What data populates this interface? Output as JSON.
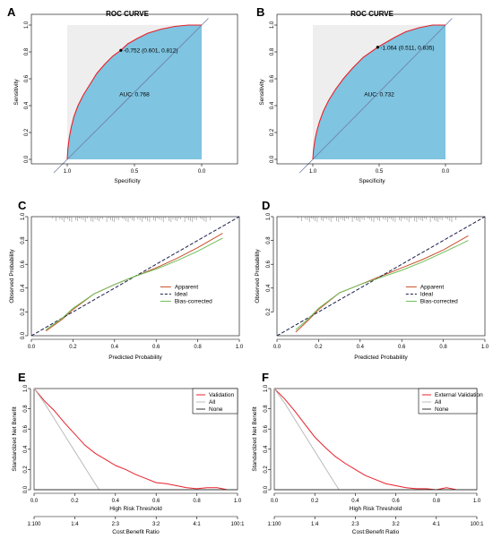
{
  "chart_data": [
    {
      "panel": "A",
      "type": "area",
      "title": "ROC CURVE",
      "xlabel": "Specificity",
      "ylabel": "Sensitivity",
      "xlim": [
        1.0,
        0.0
      ],
      "ylim": [
        0.0,
        1.0
      ],
      "xticks": [
        "1.0",
        "0.5",
        "0.0"
      ],
      "yticks": [
        "0.0",
        "0.2",
        "0.4",
        "0.6",
        "0.8",
        "1.0"
      ],
      "curve": {
        "specificity": [
          1.0,
          0.995,
          0.985,
          0.97,
          0.95,
          0.92,
          0.88,
          0.83,
          0.78,
          0.72,
          0.66,
          0.601,
          0.55,
          0.48,
          0.4,
          0.3,
          0.2,
          0.1,
          0.0
        ],
        "sensitivity": [
          0.0,
          0.08,
          0.16,
          0.24,
          0.32,
          0.4,
          0.48,
          0.56,
          0.64,
          0.71,
          0.77,
          0.812,
          0.86,
          0.9,
          0.94,
          0.97,
          0.99,
          1.0,
          1.0
        ]
      },
      "threshold_label": "-0.752 (0.601, 0.812)",
      "threshold_point": [
        0.601,
        0.812
      ],
      "auc_label": "AUC: 0.768",
      "colors": {
        "curve": "#e8202a",
        "fill": "#7fc4e0",
        "upper": "#eeeeee",
        "diag": "#6f7ca8"
      }
    },
    {
      "panel": "B",
      "type": "area",
      "title": "ROC CURVE",
      "xlabel": "Specificity",
      "ylabel": "Sensitivity",
      "xlim": [
        1.0,
        0.0
      ],
      "ylim": [
        0.0,
        1.0
      ],
      "xticks": [
        "1.0",
        "0.5",
        "0.0"
      ],
      "yticks": [
        "0.0",
        "0.2",
        "0.4",
        "0.6",
        "0.8",
        "1.0"
      ],
      "curve": {
        "specificity": [
          1.0,
          0.995,
          0.985,
          0.97,
          0.95,
          0.92,
          0.88,
          0.83,
          0.77,
          0.7,
          0.62,
          0.511,
          0.45,
          0.38,
          0.3,
          0.2,
          0.1,
          0.0
        ],
        "sensitivity": [
          0.0,
          0.07,
          0.14,
          0.21,
          0.28,
          0.36,
          0.44,
          0.52,
          0.6,
          0.68,
          0.76,
          0.835,
          0.87,
          0.91,
          0.95,
          0.98,
          1.0,
          1.0
        ]
      },
      "threshold_label": "-1.064 (0.511, 0.835)",
      "threshold_point": [
        0.511,
        0.835
      ],
      "auc_label": "AUC: 0.732",
      "colors": {
        "curve": "#e8202a",
        "fill": "#7fc4e0",
        "upper": "#eeeeee",
        "diag": "#6f7ca8"
      }
    },
    {
      "panel": "C",
      "type": "line",
      "xlabel": "Predicted Probability",
      "ylabel": "Observed Probability",
      "xlim": [
        0.0,
        1.0
      ],
      "ylim": [
        0.0,
        1.0
      ],
      "xticks": [
        "0.0",
        "0.2",
        "0.4",
        "0.6",
        "0.8",
        "1.0"
      ],
      "yticks": [
        "0.0",
        "0.2",
        "0.4",
        "0.6",
        "0.8",
        "1.0"
      ],
      "series": [
        {
          "name": "Apparent",
          "x": [
            0.07,
            0.15,
            0.2,
            0.3,
            0.4,
            0.5,
            0.6,
            0.7,
            0.8,
            0.92
          ],
          "y": [
            0.04,
            0.14,
            0.22,
            0.35,
            0.43,
            0.5,
            0.57,
            0.65,
            0.74,
            0.86
          ],
          "color": "#c8502a"
        },
        {
          "name": "Ideal",
          "x": [
            0.0,
            1.0
          ],
          "y": [
            0.0,
            1.0
          ],
          "color": "#1a1f4a"
        },
        {
          "name": "Bias-corrected",
          "x": [
            0.07,
            0.15,
            0.2,
            0.3,
            0.4,
            0.5,
            0.6,
            0.7,
            0.8,
            0.92
          ],
          "y": [
            0.05,
            0.15,
            0.23,
            0.35,
            0.43,
            0.5,
            0.56,
            0.63,
            0.71,
            0.82
          ],
          "color": "#6fbf57"
        }
      ],
      "legend": [
        "Apparent",
        "Ideal",
        "Bias-corrected"
      ],
      "legend_position": "center-right"
    },
    {
      "panel": "D",
      "type": "line",
      "xlabel": "Predicted Probability",
      "ylabel": "Observed Probability",
      "xlim": [
        0.0,
        1.0
      ],
      "ylim": [
        0.0,
        1.0
      ],
      "xticks": [
        "0.0",
        "0.2",
        "0.4",
        "0.6",
        "0.8",
        "1.0"
      ],
      "yticks": [
        "0.2",
        "0.4",
        "0.6",
        "0.8",
        "1.0"
      ],
      "series": [
        {
          "name": "Apparent",
          "x": [
            0.09,
            0.15,
            0.2,
            0.3,
            0.4,
            0.5,
            0.6,
            0.7,
            0.8,
            0.92
          ],
          "y": [
            0.03,
            0.13,
            0.22,
            0.36,
            0.43,
            0.5,
            0.57,
            0.64,
            0.72,
            0.84
          ],
          "color": "#c8502a"
        },
        {
          "name": "Ideal",
          "x": [
            0.0,
            1.0
          ],
          "y": [
            0.0,
            1.0
          ],
          "color": "#1a1f4a"
        },
        {
          "name": "Bias-corrected",
          "x": [
            0.09,
            0.15,
            0.2,
            0.3,
            0.4,
            0.5,
            0.6,
            0.7,
            0.8,
            0.92
          ],
          "y": [
            0.05,
            0.14,
            0.23,
            0.36,
            0.43,
            0.49,
            0.55,
            0.62,
            0.7,
            0.8
          ],
          "color": "#6fbf57"
        }
      ],
      "legend": [
        "Apparent",
        "Ideal",
        "Bias-corrected"
      ],
      "legend_position": "center-right"
    },
    {
      "panel": "E",
      "type": "line",
      "xlabel": "High Risk Threshold",
      "ylabel": "Standardized Net Benefit",
      "x2label": "Cost:Benefit Ratio",
      "xlim": [
        0.0,
        1.0
      ],
      "ylim": [
        0.0,
        1.0
      ],
      "xticks": [
        "0.0",
        "0.2",
        "0.4",
        "0.6",
        "0.8",
        "1.0"
      ],
      "yticks": [
        "0.0",
        "0.2",
        "0.4",
        "0.6",
        "0.8",
        "1.0"
      ],
      "x2ticks": [
        "1:100",
        "1:4",
        "2:3",
        "3:2",
        "4:1",
        "100:1"
      ],
      "series": [
        {
          "name": "Validation",
          "x": [
            0.0,
            0.05,
            0.1,
            0.15,
            0.2,
            0.25,
            0.3,
            0.35,
            0.4,
            0.45,
            0.5,
            0.55,
            0.6,
            0.65,
            0.7,
            0.75,
            0.8,
            0.85,
            0.9,
            0.95,
            1.0
          ],
          "y": [
            1.0,
            0.88,
            0.78,
            0.66,
            0.55,
            0.44,
            0.36,
            0.3,
            0.24,
            0.2,
            0.15,
            0.11,
            0.07,
            0.06,
            0.04,
            0.02,
            0.01,
            0.02,
            0.02,
            0.0,
            0.0
          ],
          "color": "#e8202a"
        },
        {
          "name": "All",
          "x": [
            0.0,
            0.05,
            0.1,
            0.15,
            0.2,
            0.25,
            0.3,
            0.32
          ],
          "y": [
            1.0,
            0.86,
            0.7,
            0.54,
            0.38,
            0.22,
            0.06,
            0.0
          ],
          "color": "#bbbbbb"
        },
        {
          "name": "None",
          "x": [
            0.0,
            1.0
          ],
          "y": [
            0.0,
            0.0
          ],
          "color": "#333333"
        }
      ],
      "legend": [
        "Validation",
        "All",
        "None"
      ],
      "legend_position": "top-right"
    },
    {
      "panel": "F",
      "type": "line",
      "xlabel": "High Risk Threshold",
      "ylabel": "Standardized Net Benefit",
      "x2label": "Cost:Benefit Ratio",
      "xlim": [
        0.0,
        1.0
      ],
      "ylim": [
        0.0,
        1.0
      ],
      "xticks": [
        "0.0",
        "0.2",
        "0.4",
        "0.6",
        "0.8",
        "1.0"
      ],
      "yticks": [
        "0.0",
        "0.2",
        "0.4",
        "0.6",
        "0.8",
        "1.0"
      ],
      "x2ticks": [
        "1:100",
        "1:4",
        "2:3",
        "3:2",
        "4:1",
        "100:1"
      ],
      "series": [
        {
          "name": "External Validation",
          "x": [
            0.0,
            0.05,
            0.1,
            0.15,
            0.2,
            0.25,
            0.3,
            0.35,
            0.4,
            0.45,
            0.5,
            0.55,
            0.6,
            0.65,
            0.7,
            0.75,
            0.8,
            0.85,
            0.9,
            0.95,
            1.0
          ],
          "y": [
            1.0,
            0.9,
            0.78,
            0.65,
            0.52,
            0.42,
            0.33,
            0.26,
            0.2,
            0.14,
            0.1,
            0.06,
            0.04,
            0.02,
            0.01,
            0.01,
            0.0,
            0.02,
            0.0,
            0.0,
            0.0
          ],
          "color": "#e8202a"
        },
        {
          "name": "All",
          "x": [
            0.0,
            0.05,
            0.1,
            0.15,
            0.2,
            0.25,
            0.3,
            0.32
          ],
          "y": [
            1.0,
            0.86,
            0.7,
            0.54,
            0.38,
            0.22,
            0.06,
            0.0
          ],
          "color": "#bbbbbb"
        },
        {
          "name": "None",
          "x": [
            0.0,
            1.0
          ],
          "y": [
            0.0,
            0.0
          ],
          "color": "#333333"
        }
      ],
      "legend": [
        "External Validation",
        "All",
        "None"
      ],
      "legend_position": "top-right"
    }
  ]
}
